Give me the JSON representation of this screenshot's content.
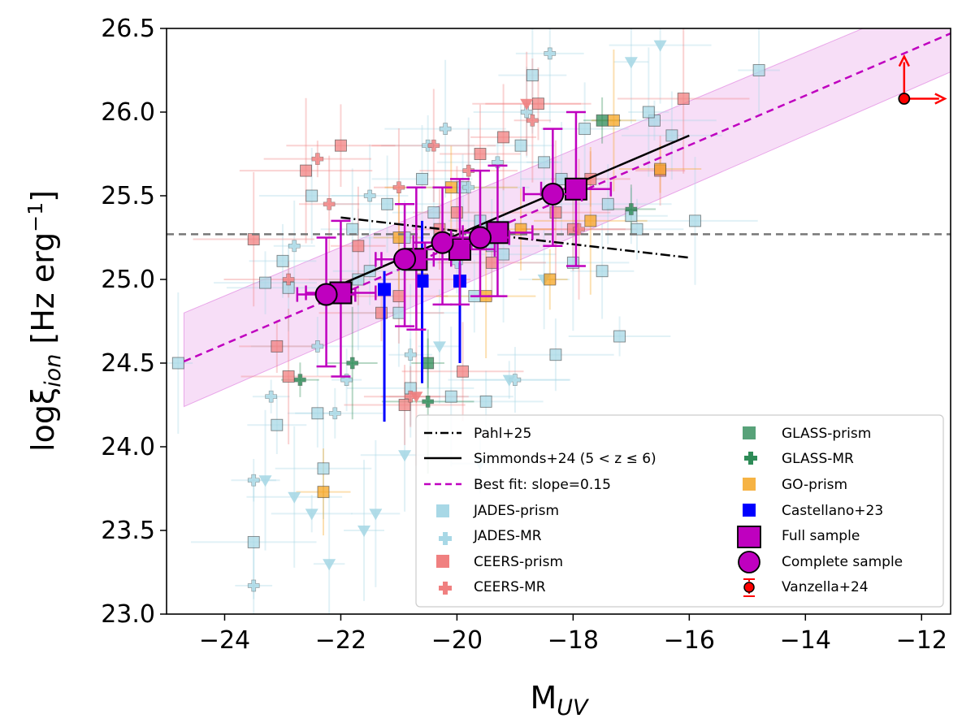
{
  "chart_data": {
    "type": "scatter",
    "xlabel": "M",
    "xlabel_sub": "UV",
    "ylabel_pre": "logξ",
    "ylabel_sub": "ion",
    "ylabel_post": " [Hz erg",
    "ylabel_sup": "−1",
    "ylabel_close": "]",
    "xlim": [
      -25.0,
      -11.5
    ],
    "ylim": [
      23.0,
      26.5
    ],
    "xticks": [
      -24,
      -22,
      -20,
      -18,
      -16,
      -14,
      -12
    ],
    "yticks": [
      23.0,
      23.5,
      24.0,
      24.5,
      25.0,
      25.5,
      26.0,
      26.5
    ],
    "xtick_labels": [
      "−24",
      "−22",
      "−20",
      "−18",
      "−16",
      "−14",
      "−12"
    ],
    "ytick_labels": [
      "23.0",
      "23.5",
      "24.0",
      "24.5",
      "25.0",
      "25.5",
      "26.0",
      "26.5"
    ],
    "reference_hline": 25.27,
    "colors": {
      "jades": "#a8d8e6",
      "ceers": "#f08080",
      "glass": "#2e8b57",
      "go": "#f5a623",
      "castellano": "#0000ff",
      "magenta": "#bf00bf",
      "vanzella": "#ff0000",
      "grey_line": "#777777"
    },
    "lines": {
      "pahl": {
        "x": [
          -22.0,
          -16.0
        ],
        "y": [
          25.37,
          25.13
        ]
      },
      "simmonds": {
        "x": [
          -22.0,
          -16.0
        ],
        "y": [
          24.97,
          25.86
        ]
      },
      "best_fit": {
        "x": [
          -24.7,
          -11.5
        ],
        "y": [
          24.51,
          26.47
        ],
        "slope": 0.15
      },
      "band": {
        "x": [
          -24.7,
          -11.5
        ],
        "y_low": [
          24.24,
          26.24
        ],
        "y_high": [
          24.8,
          26.72
        ]
      }
    },
    "series": [
      {
        "name": "JADES-prism",
        "marker": "square",
        "color": "#a8d8e6",
        "x": [
          -24.8,
          -23.1,
          -22.5,
          -21.8,
          -21.2,
          -20.6,
          -19.5,
          -18.7,
          -17.2,
          -16.3,
          -15.9,
          -14.8,
          -23.5,
          -22.3,
          -20.1,
          -19.7,
          -18.3,
          -22.4,
          -21.5,
          -20.8,
          -19.2,
          -18.5,
          -17.8,
          -17.0,
          -16.6,
          -23.0,
          -21.7,
          -20.4,
          -19.9,
          -18.9,
          -17.5,
          -16.9,
          -22.9,
          -21.0,
          -19.4,
          -18.2,
          -17.4,
          -23.3,
          -20.9,
          -19.6,
          -18.0,
          -16.7
        ],
        "y": [
          24.5,
          24.13,
          25.5,
          25.3,
          25.45,
          25.6,
          24.27,
          26.22,
          24.66,
          25.86,
          25.35,
          26.25,
          23.43,
          23.87,
          24.3,
          24.9,
          24.55,
          24.2,
          25.05,
          24.35,
          25.15,
          25.7,
          25.9,
          25.38,
          25.95,
          25.11,
          25.0,
          25.4,
          25.55,
          25.8,
          25.05,
          25.3,
          24.95,
          24.8,
          25.2,
          25.6,
          25.45,
          24.98,
          25.25,
          25.35,
          25.1,
          26.0
        ]
      },
      {
        "name": "JADES-MR",
        "marker": "plus",
        "color": "#a8d8e6",
        "x": [
          -23.5,
          -23.5,
          -22.4,
          -22.1,
          -21.5,
          -20.8,
          -20.2,
          -19.8,
          -19.0,
          -21.9,
          -23.2,
          -20.5,
          -18.8,
          -20.0,
          -19.3,
          -18.4,
          -22.8
        ],
        "y": [
          23.17,
          23.8,
          24.6,
          24.2,
          25.5,
          24.55,
          25.9,
          25.55,
          24.4,
          24.4,
          24.3,
          25.8,
          26.0,
          25.1,
          25.7,
          26.35,
          25.2
        ]
      },
      {
        "name": "JADES-triangle",
        "marker": "tri",
        "color": "#a8d8e6",
        "x": [
          -23.3,
          -22.8,
          -22.2,
          -21.4,
          -20.9,
          -19.6,
          -18.5,
          -17.0,
          -16.5,
          -22.5,
          -21.6,
          -20.3,
          -19.1
        ],
        "y": [
          23.8,
          23.7,
          23.3,
          23.6,
          23.95,
          23.9,
          25.0,
          26.3,
          26.4,
          23.6,
          23.5,
          24.6,
          24.4
        ]
      },
      {
        "name": "CEERS-prism",
        "marker": "square",
        "color": "#f08080",
        "x": [
          -23.5,
          -22.6,
          -22.0,
          -21.7,
          -20.9,
          -20.3,
          -19.9,
          -19.2,
          -18.6,
          -18.0,
          -16.5,
          -16.1,
          -22.9,
          -21.3,
          -20.6,
          -19.6,
          -18.3,
          -17.7,
          -23.1,
          -21.0,
          -20.0,
          -19.4
        ],
        "y": [
          25.24,
          25.65,
          25.8,
          25.2,
          24.25,
          25.3,
          24.45,
          25.85,
          26.05,
          25.3,
          25.65,
          26.08,
          24.42,
          24.8,
          25.0,
          25.75,
          25.4,
          25.6,
          24.6,
          24.9,
          25.4,
          25.1
        ]
      },
      {
        "name": "CEERS-MR",
        "marker": "plus",
        "color": "#f08080",
        "x": [
          -22.4,
          -22.2,
          -21.0,
          -20.8,
          -19.8,
          -18.7,
          -17.9,
          -20.4,
          -22.9
        ],
        "y": [
          25.72,
          25.45,
          25.55,
          24.3,
          25.65,
          25.95,
          25.3,
          25.8,
          25.0
        ]
      },
      {
        "name": "CEERS-triangle",
        "marker": "tri",
        "color": "#f08080",
        "x": [
          -18.8,
          -20.7
        ],
        "y": [
          26.05,
          24.3
        ]
      },
      {
        "name": "GLASS-prism",
        "marker": "square",
        "color": "#2e8b57",
        "x": [
          -20.5,
          -17.5
        ],
        "y": [
          24.5,
          25.95
        ]
      },
      {
        "name": "GLASS-MR",
        "marker": "plus",
        "color": "#2e8b57",
        "x": [
          -22.7,
          -20.5,
          -17.0,
          -21.8
        ],
        "y": [
          24.4,
          24.27,
          25.42,
          24.5
        ]
      },
      {
        "name": "GO-prism",
        "marker": "square",
        "color": "#f5a623",
        "x": [
          -22.3,
          -20.1,
          -19.5,
          -18.9,
          -18.4,
          -17.7,
          -17.3,
          -16.5,
          -21.0
        ],
        "y": [
          23.73,
          25.55,
          24.9,
          25.3,
          25.0,
          25.35,
          25.95,
          25.66,
          25.25
        ]
      }
    ],
    "castellano": [
      {
        "x": -21.25,
        "y": 24.94,
        "y_lo": 24.15,
        "y_hi": 25.05
      },
      {
        "x": -20.6,
        "y": 24.99,
        "y_lo": 24.38,
        "y_hi": 25.35
      },
      {
        "x": -19.95,
        "y": 24.99,
        "y_lo": 24.5,
        "y_hi": 25.1
      }
    ],
    "full_sample": [
      {
        "x": -22.0,
        "y": 24.92,
        "xerr": 0.6,
        "y_lo": 24.42,
        "y_hi": 25.35
      },
      {
        "x": -20.7,
        "y": 25.12,
        "xerr": 0.6,
        "y_lo": 24.7,
        "y_hi": 25.55
      },
      {
        "x": -19.95,
        "y": 25.18,
        "xerr": 0.6,
        "y_lo": 24.85,
        "y_hi": 25.6
      },
      {
        "x": -19.3,
        "y": 25.28,
        "xerr": 0.6,
        "y_lo": 24.9,
        "y_hi": 25.68
      },
      {
        "x": -17.95,
        "y": 25.54,
        "xerr": 0.6,
        "y_lo": 25.08,
        "y_hi": 26.0
      }
    ],
    "complete_sample": [
      {
        "x": -22.25,
        "y": 24.91,
        "xerr": 0.5,
        "y_lo": 24.48,
        "y_hi": 25.25
      },
      {
        "x": -20.9,
        "y": 25.12,
        "xerr": 0.5,
        "y_lo": 24.72,
        "y_hi": 25.45
      },
      {
        "x": -20.25,
        "y": 25.22,
        "xerr": 0.5,
        "y_lo": 24.85,
        "y_hi": 25.55
      },
      {
        "x": -19.6,
        "y": 25.25,
        "xerr": 0.5,
        "y_lo": 24.9,
        "y_hi": 25.65
      },
      {
        "x": -18.35,
        "y": 25.51,
        "xerr": 0.5,
        "y_lo": 25.2,
        "y_hi": 25.9
      }
    ],
    "vanzella": {
      "x": -12.3,
      "y": 26.08
    },
    "legend": {
      "placement": "lower-right",
      "col1": [
        "Pahl+25",
        "Simmonds+24 (5 < z ≤ 6)",
        "Best fit: slope=0.15",
        "JADES-prism",
        "JADES-MR",
        "CEERS-prism",
        "CEERS-MR"
      ],
      "col2": [
        "GLASS-prism",
        "GLASS-MR",
        "GO-prism",
        "Castellano+23",
        "Full sample",
        "Complete sample",
        "Vanzella+24"
      ]
    }
  }
}
